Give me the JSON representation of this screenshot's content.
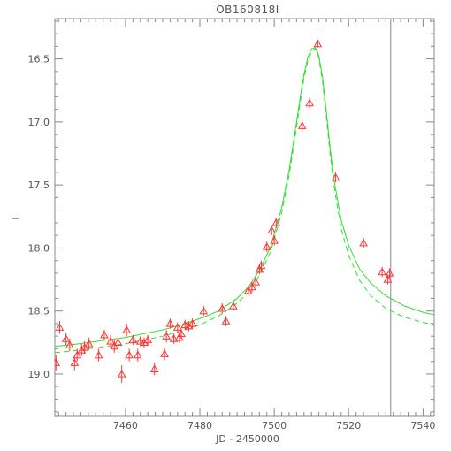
{
  "chart_data": {
    "type": "scatter",
    "title": "OB160818I",
    "xlabel": "JD - 2450000",
    "ylabel": "I",
    "xlim": [
      7441,
      7543
    ],
    "ylim": [
      19.33,
      16.18
    ],
    "y_inverted": true,
    "x_ticks": [
      7460,
      7480,
      7500,
      7520,
      7540
    ],
    "y_ticks": [
      16.5,
      17.0,
      17.5,
      18.0,
      18.5,
      19.0
    ],
    "grid": false,
    "colors": {
      "frame": "#888888",
      "points": "#ff3333",
      "model": "#33dd33",
      "text": "#555555",
      "marker_line": "#888888"
    },
    "vertical_line_x": 7531.3,
    "series": [
      {
        "marker": "triangle",
        "x": [
          7441.3,
          7442.3,
          7444.0,
          7445.0,
          7446.3,
          7447.0,
          7448.2,
          7449.0,
          7450.2,
          7452.8,
          7454.3,
          7456.0,
          7457.0,
          7458.0,
          7459.0,
          7460.3,
          7461.0,
          7462.0,
          7463.3,
          7464.0,
          7465.0,
          7466.0,
          7467.8,
          7470.5,
          7471.0,
          7472.0,
          7473.0,
          7474.0,
          7474.5,
          7475.0,
          7476.0,
          7477.0,
          7478.0,
          7481.0,
          7486.0,
          7487.0,
          7489.0,
          7493.0,
          7494.0,
          7495.0,
          7496.0,
          7496.5,
          7498.0,
          7499.3,
          7500.0,
          7500.5,
          7507.5,
          7509.5,
          7511.7,
          7516.5,
          7524.0,
          7529.0,
          7530.5,
          7531.0
        ],
        "y": [
          18.91,
          18.63,
          18.72,
          18.77,
          18.91,
          18.85,
          18.81,
          18.79,
          18.76,
          18.85,
          18.69,
          18.74,
          18.78,
          18.75,
          19.0,
          18.65,
          18.85,
          18.73,
          18.85,
          18.74,
          18.75,
          18.73,
          18.96,
          18.84,
          18.7,
          18.6,
          18.72,
          18.63,
          18.71,
          18.68,
          18.61,
          18.62,
          18.6,
          18.5,
          18.48,
          18.58,
          18.46,
          18.34,
          18.31,
          18.27,
          18.17,
          18.14,
          17.99,
          17.86,
          17.94,
          17.8,
          17.03,
          16.85,
          16.38,
          17.44,
          17.96,
          18.19,
          18.25,
          18.2
        ],
        "yerr": [
          0.06,
          0.05,
          0.05,
          0.05,
          0.06,
          0.05,
          0.05,
          0.05,
          0.05,
          0.05,
          0.04,
          0.05,
          0.05,
          0.05,
          0.07,
          0.05,
          0.05,
          0.04,
          0.05,
          0.04,
          0.04,
          0.04,
          0.05,
          0.05,
          0.05,
          0.04,
          0.04,
          0.04,
          0.04,
          0.04,
          0.04,
          0.04,
          0.04,
          0.04,
          0.04,
          0.04,
          0.04,
          0.04,
          0.04,
          0.04,
          0.04,
          0.04,
          0.04,
          0.04,
          0.04,
          0.04,
          0.04,
          0.04,
          0.03,
          0.04,
          0.04,
          0.04,
          0.04,
          0.04
        ]
      },
      {
        "style": "solid",
        "x": [
          7441,
          7445,
          7450,
          7455,
          7460,
          7465,
          7470,
          7475,
          7480,
          7485,
          7490,
          7493,
          7496,
          7499,
          7502,
          7504,
          7506,
          7507,
          7508,
          7509,
          7510,
          7511,
          7511.5,
          7512,
          7513,
          7514,
          7515,
          7516,
          7518,
          7520,
          7523,
          7526,
          7530,
          7535,
          7540,
          7543
        ],
        "y": [
          18.78,
          18.77,
          18.75,
          18.73,
          18.71,
          18.68,
          18.65,
          18.61,
          18.56,
          18.5,
          18.4,
          18.31,
          18.18,
          17.99,
          17.68,
          17.38,
          17.0,
          16.8,
          16.62,
          16.49,
          16.42,
          16.41,
          16.43,
          16.48,
          16.65,
          16.92,
          17.2,
          17.45,
          17.78,
          17.98,
          18.17,
          18.28,
          18.38,
          18.46,
          18.51,
          18.53
        ]
      },
      {
        "style": "dashed",
        "x": [
          7441,
          7445,
          7450,
          7455,
          7460,
          7465,
          7470,
          7475,
          7480,
          7485,
          7490,
          7493,
          7496,
          7499,
          7502,
          7504,
          7506,
          7507,
          7508,
          7509,
          7510,
          7511,
          7511.5,
          7512,
          7513,
          7514,
          7515,
          7516,
          7518,
          7520,
          7523,
          7526,
          7530,
          7535,
          7540,
          7543
        ],
        "y": [
          18.83,
          18.82,
          18.8,
          18.78,
          18.76,
          18.73,
          18.7,
          18.66,
          18.61,
          18.54,
          18.44,
          18.35,
          18.22,
          18.03,
          17.72,
          17.42,
          17.04,
          16.84,
          16.65,
          16.52,
          16.44,
          16.42,
          16.44,
          16.5,
          16.68,
          16.96,
          17.25,
          17.5,
          17.85,
          18.06,
          18.26,
          18.38,
          18.48,
          18.55,
          18.59,
          18.61
        ]
      }
    ]
  }
}
